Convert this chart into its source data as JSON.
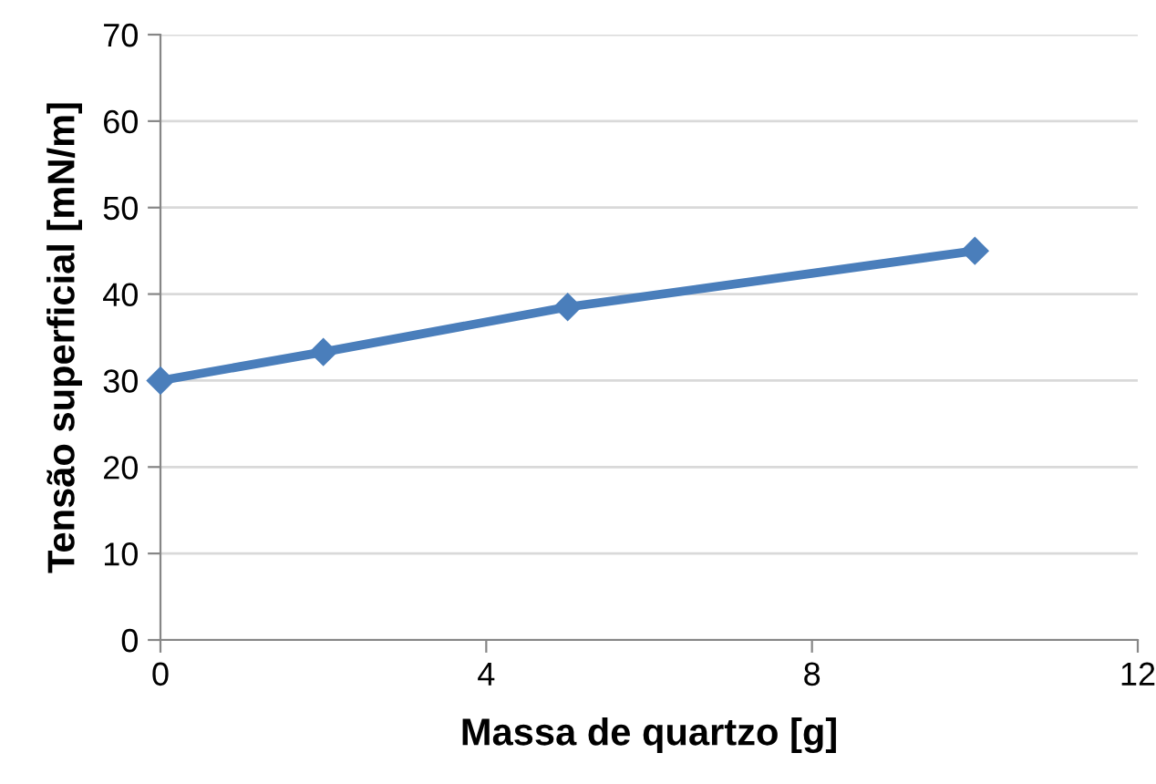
{
  "chart_data": {
    "type": "line",
    "xlabel": "Massa de quartzo [g]",
    "ylabel": "Tensão superficial [mN/m]",
    "x": [
      0,
      2,
      5,
      10
    ],
    "series": [
      {
        "color": "#4a7ebb",
        "values": [
          30,
          33.3,
          38.5,
          45
        ]
      }
    ],
    "xlim": [
      0,
      12
    ],
    "xticks": [
      0,
      4,
      8,
      12
    ],
    "ylim": [
      0,
      70
    ],
    "yticks": [
      0,
      10,
      20,
      30,
      40,
      50,
      60,
      70
    ],
    "grid": "y",
    "marker": "diamond",
    "line_style": "solid",
    "legend": false
  }
}
